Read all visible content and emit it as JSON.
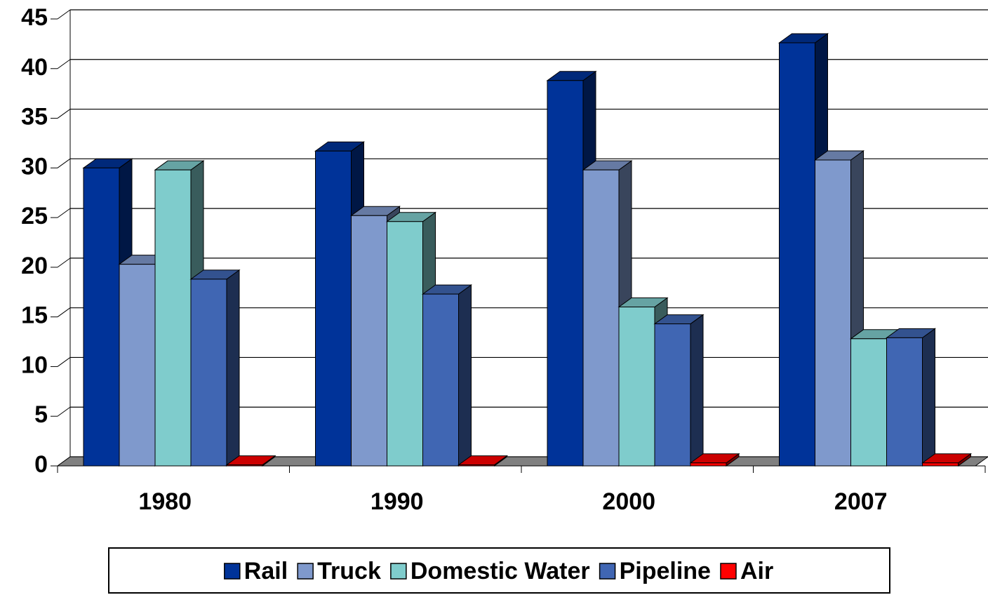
{
  "chart_data": {
    "type": "bar3d",
    "categories": [
      "1980",
      "1990",
      "2000",
      "2007"
    ],
    "series": [
      {
        "name": "Rail",
        "color": "#003399",
        "values": [
          30,
          31.7,
          38.8,
          42.6
        ]
      },
      {
        "name": "Truck",
        "color": "#7f99cc",
        "values": [
          20.3,
          25.2,
          29.8,
          30.8
        ]
      },
      {
        "name": "Domestic Water",
        "color": "#7fcccc",
        "values": [
          29.8,
          24.6,
          16,
          12.8
        ]
      },
      {
        "name": "Pipeline",
        "color": "#4066b3",
        "values": [
          18.8,
          17.3,
          14.3,
          12.9
        ]
      },
      {
        "name": "Air",
        "color": "#ff0000",
        "values": [
          0.1,
          0.1,
          0.3,
          0.3
        ]
      }
    ],
    "ylim": [
      0,
      45
    ],
    "yticks": [
      0,
      5,
      10,
      15,
      20,
      25,
      30,
      35,
      40,
      45
    ],
    "grid": true,
    "legend": "bottom"
  }
}
